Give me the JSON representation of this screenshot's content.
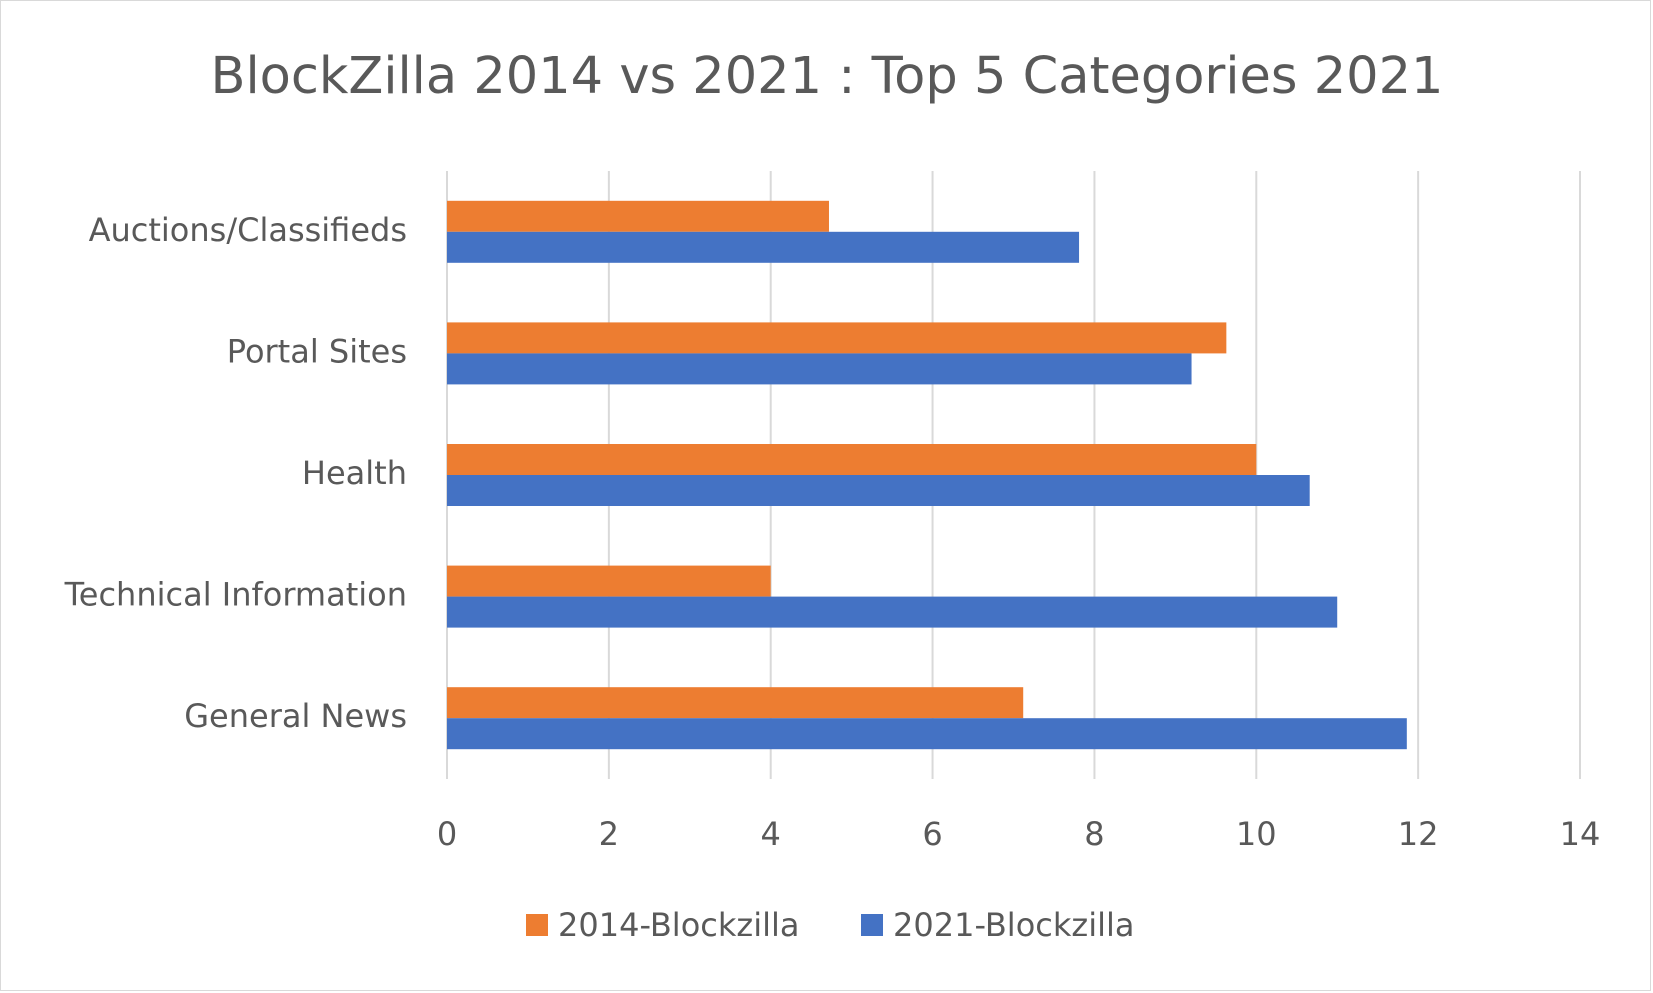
{
  "chart_data": {
    "type": "bar",
    "orientation": "horizontal",
    "title": "BlockZilla 2014 vs 2021 : Top 5 Categories 2021",
    "categories": [
      "Auctions/Classifieds",
      "Portal Sites",
      "Health",
      "Technical Information",
      "General News"
    ],
    "series": [
      {
        "name": "2014-Blockzilla",
        "color": "#ED7D31",
        "values": [
          4.72,
          9.63,
          10.0,
          4.0,
          7.12
        ]
      },
      {
        "name": "2021-Blockzilla",
        "color": "#4472C4",
        "values": [
          7.81,
          9.2,
          10.66,
          11.0,
          11.86
        ]
      }
    ],
    "xlim": [
      0,
      14
    ],
    "xticks": [
      0,
      2,
      4,
      6,
      8,
      10,
      12,
      14
    ],
    "grid": true,
    "legend_position": "bottom"
  }
}
